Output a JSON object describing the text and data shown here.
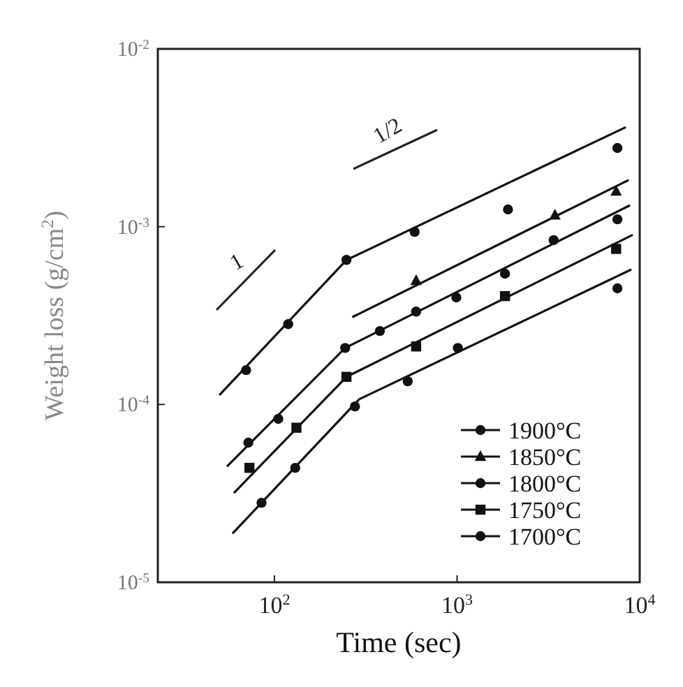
{
  "chart_data": {
    "type": "scatter",
    "xlabel": "Time (sec)",
    "ylabel": "Weight loss (g/cm$^{2}$)",
    "log": "xy",
    "grid": false,
    "legend": "bottom right",
    "xlim": [
      23,
      10000
    ],
    "ylim": [
      1e-05,
      0.01
    ],
    "xticks": [
      {
        "value": 100,
        "label": "10$^{2}$"
      },
      {
        "value": 1000,
        "label": "10$^{3}$"
      },
      {
        "value": 10000,
        "label": "10$^{4}$"
      }
    ],
    "yticks": [
      {
        "value": 1e-05,
        "label": "10$^{-5}$"
      },
      {
        "value": 0.0001,
        "label": "10$^{-4}$"
      },
      {
        "value": 0.001,
        "label": "10$^{-3}$"
      },
      {
        "value": 0.01,
        "label": "10$^{-2}$"
      }
    ],
    "annotations": [
      "1",
      "1/2"
    ],
    "series": [
      {
        "name": "1900°C",
        "marker": "circle",
        "color": "#111111",
        "x": [
          70,
          119,
          248,
          586,
          1900,
          7550
        ],
        "values": [
          0.000156,
          0.000283,
          0.00065,
          0.000935,
          0.00125,
          0.00277
        ]
      },
      {
        "name": "1850°C",
        "marker": "triangle",
        "color": "#111111",
        "x": [
          597,
          3435,
          7430
        ],
        "values": [
          0.000497,
          0.00116,
          0.00158
        ]
      },
      {
        "name": "1800°C",
        "marker": "circle",
        "color": "#111111",
        "x": [
          72,
          105,
          244,
          378,
          597,
          991,
          1830,
          3380,
          7550
        ],
        "values": [
          6.1e-05,
          8.3e-05,
          0.000208,
          0.000259,
          0.000333,
          0.0004,
          0.000544,
          0.00084,
          0.0011
        ]
      },
      {
        "name": "1750°C",
        "marker": "square",
        "color": "#111111",
        "x": [
          73,
          132,
          248,
          597,
          1830,
          7430
        ],
        "values": [
          4.4e-05,
          7.4e-05,
          0.000143,
          0.000212,
          0.000407,
          0.00075
        ]
      },
      {
        "name": "1700°C",
        "marker": "circle",
        "color": "#111111",
        "x": [
          85,
          130,
          276,
          537,
          1010,
          7550
        ],
        "values": [
          2.8e-05,
          4.4e-05,
          9.75e-05,
          0.000135,
          0.000208,
          0.00045
        ]
      },
      {
        "type": "line",
        "color": "#111111",
        "x": [
          50,
          248,
          8400
        ],
        "values": [
          0.000113,
          0.00065,
          0.00363
        ]
      },
      {
        "type": "line",
        "color": "#111111",
        "x": [
          267,
          8700
        ],
        "values": [
          0.00031,
          0.00183
        ]
      },
      {
        "type": "line",
        "color": "#111111",
        "x": [
          55,
          244,
          8850
        ],
        "values": [
          4.48e-05,
          0.000208,
          0.00132
        ]
      },
      {
        "type": "line",
        "color": "#111111",
        "x": [
          60,
          248,
          9160
        ],
        "values": [
          3.18e-05,
          0.000143,
          0.0009
        ]
      },
      {
        "type": "line",
        "color": "#111111",
        "x": [
          59,
          291,
          9000
        ],
        "values": [
          1.88e-05,
          0.000107,
          0.000574
        ]
      }
    ]
  }
}
